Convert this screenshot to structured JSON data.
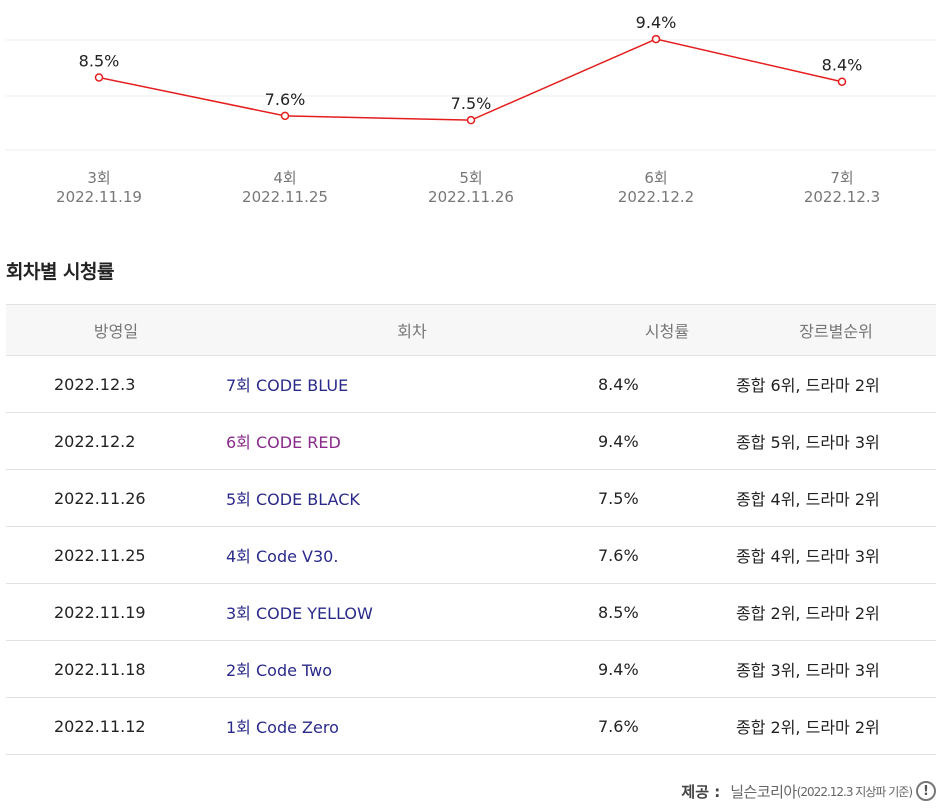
{
  "chart_data": {
    "type": "line",
    "categories": [
      "3회",
      "4회",
      "5회",
      "6회",
      "7회"
    ],
    "dates": [
      "2022.11.19",
      "2022.11.25",
      "2022.11.26",
      "2022.12.2",
      "2022.12.3"
    ],
    "values": [
      8.5,
      7.6,
      7.5,
      9.4,
      8.4
    ],
    "value_labels": [
      "8.5%",
      "7.6%",
      "7.5%",
      "9.4%",
      "8.4%"
    ],
    "line_color": "#e41e1e",
    "grid": true,
    "ylim": [
      6.8,
      9.8
    ]
  },
  "section": {
    "title": "회차별 시청률"
  },
  "table": {
    "headers": [
      "방영일",
      "회차",
      "시청률",
      "장르별순위"
    ],
    "rows": [
      {
        "date": "2022.12.3",
        "episode": "7회 CODE BLUE",
        "rating": "8.4%",
        "rank": "종합 6위, 드라마 2위",
        "active": false
      },
      {
        "date": "2022.12.2",
        "episode": "6회 CODE RED",
        "rating": "9.4%",
        "rank": "종합 5위, 드라마 3위",
        "active": true
      },
      {
        "date": "2022.11.26",
        "episode": "5회 CODE BLACK",
        "rating": "7.5%",
        "rank": "종합 4위, 드라마 2위",
        "active": false
      },
      {
        "date": "2022.11.25",
        "episode": "4회 Code V30.",
        "rating": "7.6%",
        "rank": "종합 4위, 드라마 3위",
        "active": false
      },
      {
        "date": "2022.11.19",
        "episode": "3회 CODE YELLOW",
        "rating": "8.5%",
        "rank": "종합 2위, 드라마 2위",
        "active": false
      },
      {
        "date": "2022.11.18",
        "episode": "2회 Code Two",
        "rating": "9.4%",
        "rank": "종합 3위, 드라마 3위",
        "active": false
      },
      {
        "date": "2022.11.12",
        "episode": "1회 Code Zero",
        "rating": "7.6%",
        "rank": "종합 2위, 드라마 2위",
        "active": false
      }
    ]
  },
  "footer": {
    "label": "제공 :",
    "source": "닐슨코리아",
    "detail": "(2022.12.3 지상파 기준)",
    "icon": "exclamation-icon",
    "icon_glyph": "!"
  }
}
